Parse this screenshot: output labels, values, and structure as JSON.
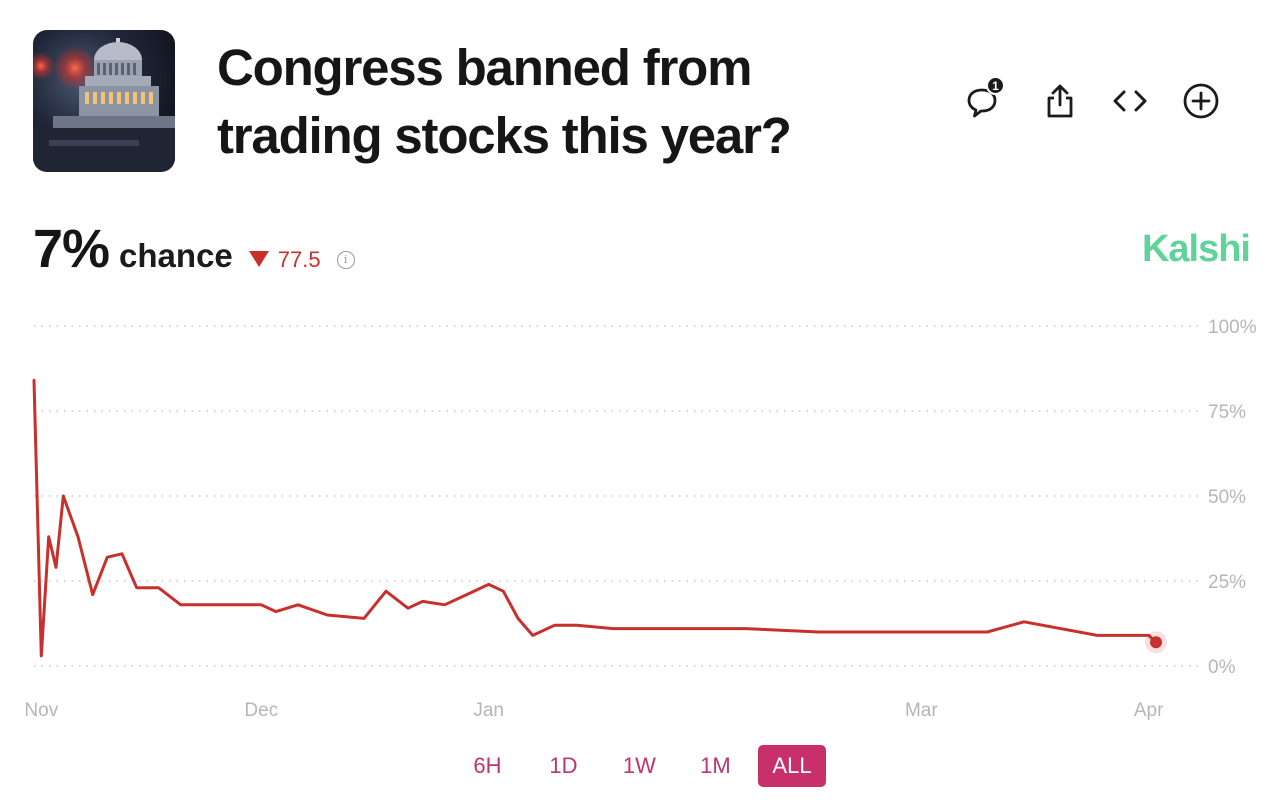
{
  "market": {
    "title_line1": "Congress banned from",
    "title_line2": "trading stocks this year?"
  },
  "actions": {
    "comments_icon": "comment-icon",
    "comments_count": "1",
    "share_icon": "share-icon",
    "embed_icon": "embed-icon",
    "add_icon": "plus-circle-icon"
  },
  "stats": {
    "probability": "7%",
    "chance_label": "chance",
    "change_value": "77.5",
    "change_direction": "down",
    "change_color": "#c8302c",
    "info_icon": "info-icon"
  },
  "brand": {
    "name": "Kalshi",
    "color": "#5fd39a"
  },
  "range_buttons": [
    {
      "label": "6H",
      "active": false
    },
    {
      "label": "1D",
      "active": false
    },
    {
      "label": "1W",
      "active": false
    },
    {
      "label": "1M",
      "active": false
    },
    {
      "label": "ALL",
      "active": true
    }
  ],
  "chart_data": {
    "type": "line",
    "title": "",
    "xlabel": "",
    "ylabel": "",
    "x_tick_labels": [
      "Nov",
      "Dec",
      "Jan",
      "Mar",
      "Apr"
    ],
    "y_tick_labels": [
      "100%",
      "75%",
      "50%",
      "25%",
      "0%"
    ],
    "ylim": [
      0,
      100
    ],
    "grid": "horizontal-dotted",
    "line_color": "#c8302c",
    "series": [
      {
        "x": [
          "Oct 31",
          "Nov 1",
          "Nov 2",
          "Nov 3",
          "Nov 4",
          "Nov 6",
          "Nov 8",
          "Nov 10",
          "Nov 12",
          "Nov 14",
          "Nov 17",
          "Nov 20",
          "Nov 23",
          "Nov 26",
          "Dec 1",
          "Dec 3",
          "Dec 6",
          "Dec 10",
          "Dec 15",
          "Dec 18",
          "Dec 21",
          "Dec 23",
          "Dec 26",
          "Dec 29",
          "Jan 1",
          "Jan 3",
          "Jan 5",
          "Jan 7",
          "Jan 10",
          "Jan 13",
          "Jan 18",
          "Jan 25",
          "Feb 5",
          "Feb 15",
          "Mar 1",
          "Mar 10",
          "Mar 15",
          "Mar 25",
          "Apr 1",
          "Apr 2"
        ],
        "y": [
          84,
          3,
          38,
          29,
          50,
          38,
          21,
          32,
          33,
          23,
          23,
          18,
          18,
          18,
          18,
          16,
          18,
          15,
          14,
          22,
          17,
          19,
          18,
          21,
          24,
          22,
          14,
          9,
          12,
          12,
          11,
          11,
          11,
          10,
          10,
          10,
          13,
          9,
          9,
          7
        ]
      }
    ],
    "current_value": 7
  }
}
